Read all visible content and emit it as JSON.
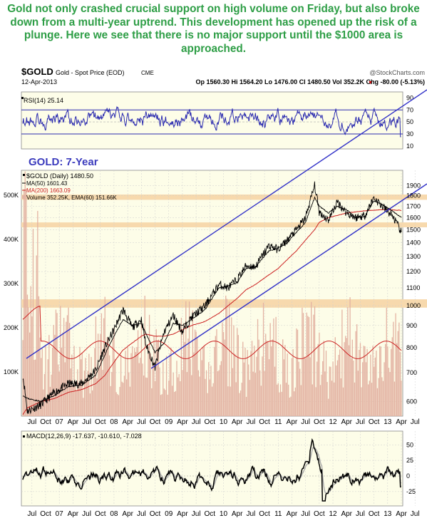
{
  "headline": "Gold not only crashed crucial support on high volume on Friday, but also broke down from a multi-year uptrend. This development has opened up the risk of a plunge. Here we see that there is no major support until the $1000 area is approached.",
  "header": {
    "symbol": "$GOLD",
    "name": "Gold - Spot Price (EOD)",
    "exchange": "CME",
    "source": "@StockCharts.com",
    "date": "12-Apr-2013",
    "quote": "Op 1560.30  Hi 1564.20  Lo 1476.00  Cl 1480.50  Vol 352.2K  Chg -80.00 (-5.13%)",
    "chg_arrow": "▼"
  },
  "annotation": "GOLD: 7-Year",
  "colors": {
    "background": "#fdfde8",
    "price": "#000000",
    "ma50": "#000000",
    "ma200": "#cc2222",
    "volume": "#e3b3a3",
    "ema_volume": "#cc2222",
    "rsi": "#2b2bb0",
    "trendline": "#3232c8",
    "support_zone": "#f7d9ad",
    "macd": "#000000",
    "macd_signal": "#aaaaaa",
    "headline": "#2e9e46"
  },
  "chart_data": [
    {
      "type": "line",
      "panel": "RSI",
      "title": "RSI(14) 25.14",
      "series": [
        {
          "name": "RSI(14)",
          "last": 25.14
        }
      ],
      "y_ticks": [
        10,
        30,
        50,
        70,
        90
      ],
      "ylim": [
        5,
        100
      ],
      "reference_lines": [
        30,
        70
      ]
    },
    {
      "type": "line",
      "panel": "Price",
      "log_scale": true,
      "legend": [
        "$GOLD (Daily) 1480.50",
        "MA(50) 1601.43",
        "MA(200) 1663.09",
        "Volume 352.25K, EMA(60) 151.66K"
      ],
      "x_ticks": [
        "Jul",
        "Oct",
        "07",
        "Apr",
        "Jul",
        "Oct",
        "08",
        "Apr",
        "Jul",
        "Oct",
        "09",
        "Apr",
        "Jul",
        "Oct",
        "10",
        "Apr",
        "Jul",
        "Oct",
        "11",
        "Apr",
        "Jul",
        "Oct",
        "12",
        "Apr",
        "Jul",
        "Oct",
        "13",
        "Apr",
        "Jul"
      ],
      "y_ticks": [
        600,
        700,
        800,
        900,
        1000,
        1100,
        1200,
        1300,
        1400,
        1500,
        1600,
        1700,
        1800,
        1900
      ],
      "volume_ticks": [
        "100K",
        "200K",
        "300K",
        "400K",
        "500K"
      ],
      "support_zones": [
        [
          990,
          1035
        ],
        [
          1520,
          1560
        ],
        [
          1760,
          1810
        ]
      ],
      "x": [
        "2006-05",
        "2006-06",
        "2006-09",
        "2006-12",
        "2007-03",
        "2007-06",
        "2007-09",
        "2007-11",
        "2008-01",
        "2008-03",
        "2008-05",
        "2008-07",
        "2008-08",
        "2008-10",
        "2008-12",
        "2009-02",
        "2009-04",
        "2009-06",
        "2009-09",
        "2009-12",
        "2010-02",
        "2010-04",
        "2010-06",
        "2010-08",
        "2010-11",
        "2011-01",
        "2011-03",
        "2011-05",
        "2011-07",
        "2011-09",
        "2011-10",
        "2011-12",
        "2012-02",
        "2012-04",
        "2012-06",
        "2012-08",
        "2012-10",
        "2012-12",
        "2013-02",
        "2013-04"
      ],
      "series": [
        {
          "name": "$GOLD (Daily)",
          "values": [
            690,
            570,
            590,
            630,
            660,
            660,
            710,
            800,
            880,
            980,
            890,
            930,
            810,
            720,
            870,
            950,
            870,
            940,
            1000,
            1120,
            1100,
            1150,
            1240,
            1230,
            1380,
            1350,
            1420,
            1500,
            1600,
            1900,
            1650,
            1580,
            1740,
            1640,
            1600,
            1620,
            1780,
            1690,
            1620,
            1480
          ]
        },
        {
          "name": "MA(50)",
          "values": [
            620,
            610,
            600,
            620,
            650,
            655,
            690,
            770,
            850,
            930,
            900,
            910,
            860,
            780,
            820,
            910,
            900,
            930,
            980,
            1100,
            1110,
            1130,
            1220,
            1230,
            1340,
            1360,
            1400,
            1480,
            1560,
            1780,
            1700,
            1640,
            1700,
            1670,
            1600,
            1610,
            1750,
            1710,
            1660,
            1601
          ]
        },
        {
          "name": "MA(200)",
          "values": [
            560,
            580,
            600,
            610,
            630,
            640,
            660,
            690,
            740,
            790,
            820,
            850,
            860,
            850,
            850,
            860,
            880,
            900,
            920,
            960,
            1000,
            1040,
            1090,
            1120,
            1180,
            1220,
            1280,
            1340,
            1420,
            1500,
            1560,
            1600,
            1620,
            1640,
            1650,
            1660,
            1665,
            1670,
            1668,
            1663
          ]
        }
      ]
    },
    {
      "type": "line",
      "panel": "MACD",
      "title": "MACD(12,26,9) -17.637, -10.610, -7.028",
      "series": [
        {
          "name": "MACD",
          "last": -17.637
        },
        {
          "name": "Signal",
          "last": -10.61
        },
        {
          "name": "Histogram",
          "last": -7.028
        }
      ],
      "y_ticks": [
        -25,
        0,
        25,
        50
      ],
      "ylim": [
        -48,
        72
      ]
    }
  ]
}
